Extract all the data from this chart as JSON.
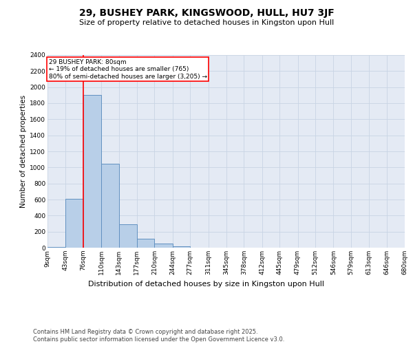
{
  "title": "29, BUSHEY PARK, KINGSWOOD, HULL, HU7 3JF",
  "subtitle": "Size of property relative to detached houses in Kingston upon Hull",
  "xlabel": "Distribution of detached houses by size in Kingston upon Hull",
  "ylabel": "Number of detached properties",
  "bar_edges": [
    9,
    43,
    76,
    110,
    143,
    177,
    210,
    244,
    277,
    311,
    345,
    378,
    412,
    445,
    479,
    512,
    546,
    579,
    613,
    646,
    680
  ],
  "bar_heights": [
    10,
    605,
    1905,
    1045,
    295,
    110,
    48,
    20,
    0,
    0,
    0,
    0,
    0,
    0,
    0,
    0,
    0,
    0,
    0,
    0
  ],
  "bar_color": "#b8cfe8",
  "bar_edge_color": "#6090c0",
  "bar_edge_width": 0.7,
  "red_line_x": 76,
  "annotation_text": "29 BUSHEY PARK: 80sqm\n← 19% of detached houses are smaller (765)\n80% of semi-detached houses are larger (3,205) →",
  "annotation_box_color": "white",
  "annotation_box_edge_color": "red",
  "annotation_fontsize": 6.5,
  "title_fontsize": 10,
  "subtitle_fontsize": 8,
  "xlabel_fontsize": 8,
  "ylabel_fontsize": 7.5,
  "tick_labelsize": 6.5,
  "ylim": [
    0,
    2400
  ],
  "yticks": [
    0,
    200,
    400,
    600,
    800,
    1000,
    1200,
    1400,
    1600,
    1800,
    2000,
    2200,
    2400
  ],
  "tick_labels": [
    "9sqm",
    "43sqm",
    "76sqm",
    "110sqm",
    "143sqm",
    "177sqm",
    "210sqm",
    "244sqm",
    "277sqm",
    "311sqm",
    "345sqm",
    "378sqm",
    "412sqm",
    "445sqm",
    "479sqm",
    "512sqm",
    "546sqm",
    "579sqm",
    "613sqm",
    "646sqm",
    "680sqm"
  ],
  "grid_color": "#c8d4e4",
  "bg_color": "#e4eaf4",
  "footer_line1": "Contains HM Land Registry data © Crown copyright and database right 2025.",
  "footer_line2": "Contains public sector information licensed under the Open Government Licence v3.0.",
  "footer_fontsize": 6.0
}
